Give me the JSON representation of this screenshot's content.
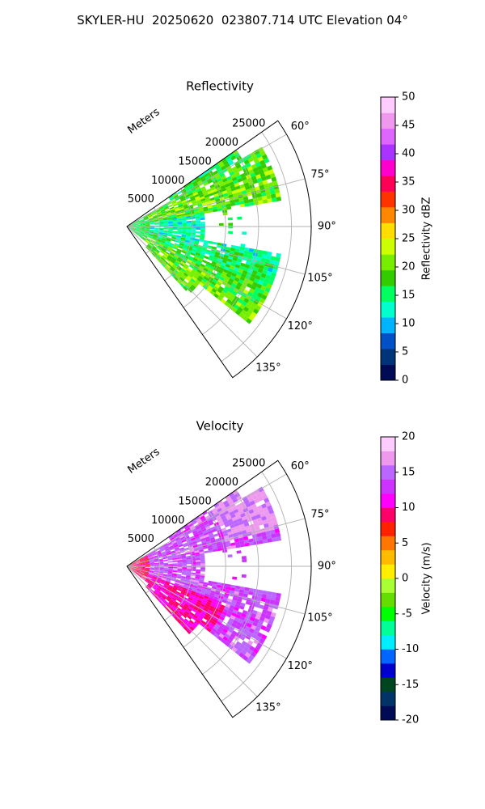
{
  "figure": {
    "title": "SKYLER-HU  20250620  023807.714 UTC Elevation 04°"
  },
  "chart_data": [
    {
      "type": "heatmap",
      "title": "Reflectivity",
      "radial_label": "Meters",
      "radial_ticks": [
        "5000",
        "10000",
        "15000",
        "20000",
        "25000"
      ],
      "radial_tick_values": [
        5000,
        10000,
        15000,
        20000,
        25000
      ],
      "angle_ticks": [
        "60°",
        "75°",
        "90°",
        "105°",
        "120°",
        "135°"
      ],
      "angle_tick_values": [
        60,
        75,
        90,
        105,
        120,
        135
      ],
      "azimuth_range": [
        55,
        145
      ],
      "range_max": 28000,
      "colorbar": {
        "label": "Reflectivity dBZ",
        "ticks": [
          "0",
          "5",
          "10",
          "15",
          "20",
          "25",
          "30",
          "35",
          "40",
          "45",
          "50"
        ],
        "range": [
          0,
          50
        ],
        "colors": [
          "#000a55",
          "#003377",
          "#0050c8",
          "#00b4ff",
          "#00ffcc",
          "#00ff60",
          "#33cc00",
          "#77ee00",
          "#ccff00",
          "#ffdd00",
          "#ff8800",
          "#ff3300",
          "#ff0055",
          "#ff00cc",
          "#aa33ff",
          "#dd66ff",
          "#ee99ee",
          "#ffccff"
        ]
      },
      "field": {
        "description": "Dominant reflectivity ~15-22 dBZ across wide sector",
        "typical_range": [
          10,
          25
        ]
      }
    },
    {
      "type": "heatmap",
      "title": "Velocity",
      "radial_label": "Meters",
      "radial_ticks": [
        "5000",
        "10000",
        "15000",
        "20000",
        "25000"
      ],
      "radial_tick_values": [
        5000,
        10000,
        15000,
        20000,
        25000
      ],
      "angle_ticks": [
        "60°",
        "75°",
        "90°",
        "105°",
        "120°",
        "135°"
      ],
      "angle_tick_values": [
        60,
        75,
        90,
        105,
        120,
        135
      ],
      "azimuth_range": [
        55,
        145
      ],
      "range_max": 28000,
      "colorbar": {
        "label": "Velocity (m/s)",
        "ticks": [
          "-20",
          "-15",
          "-10",
          "-5",
          "0",
          "5",
          "10",
          "15",
          "20"
        ],
        "range": [
          -20,
          20
        ],
        "colors": [
          "#000a55",
          "#003366",
          "#004422",
          "#0000cc",
          "#0066ff",
          "#00eeff",
          "#00ff99",
          "#00ff00",
          "#66dd00",
          "#aaff33",
          "#ffee00",
          "#ffbb00",
          "#ff7700",
          "#ff2200",
          "#ff0066",
          "#ff00ff",
          "#cc33ff",
          "#bb66ff",
          "#ee99ee",
          "#ffccff"
        ]
      },
      "field": {
        "description": "Mostly 10-15 m/s (magenta) with red 8-12 m/s near lower edge",
        "typical_range": [
          8,
          18
        ]
      }
    }
  ]
}
